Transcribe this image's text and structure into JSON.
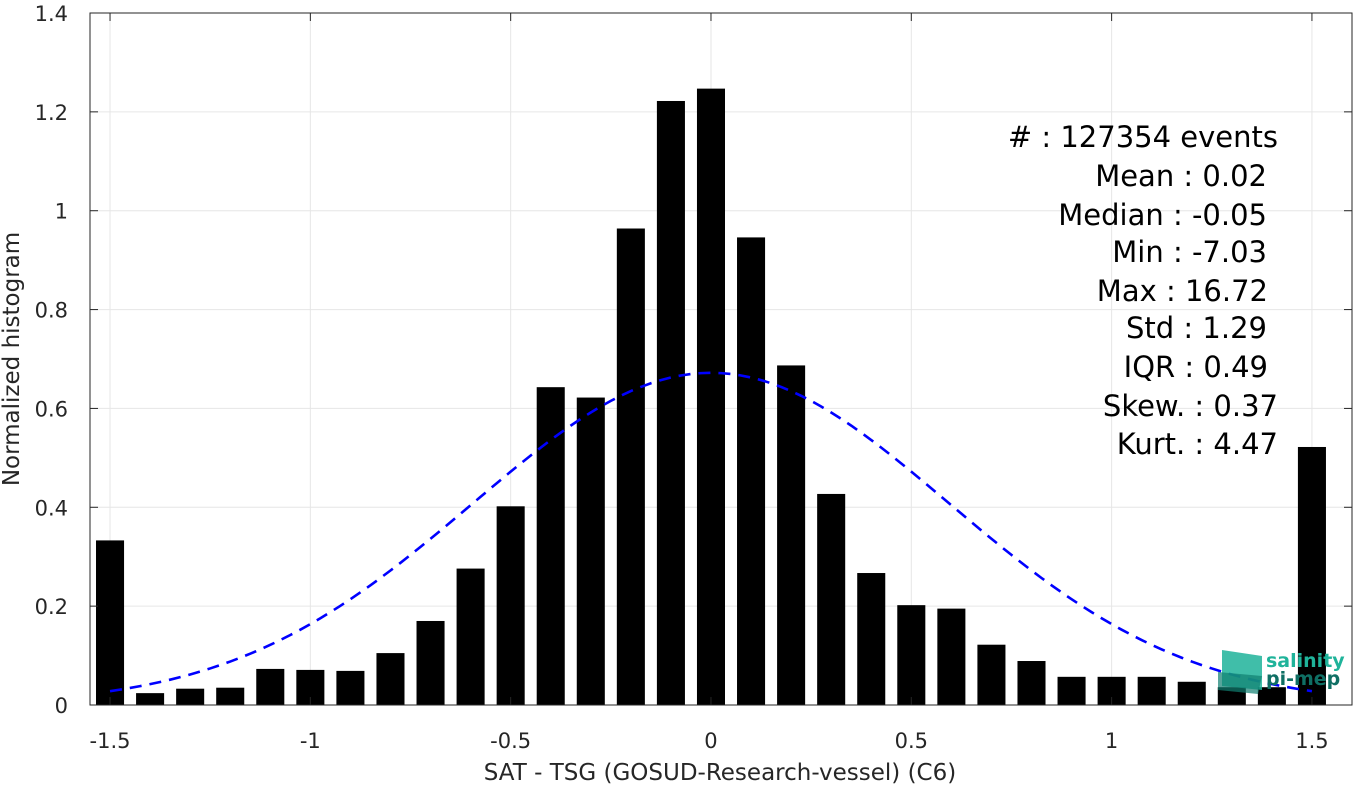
{
  "chart_data": {
    "type": "bar",
    "xlabel": "SAT - TSG (GOSUD-Research-vessel) (C6)",
    "ylabel": "Normalized histogram",
    "xlim": [
      -1.55,
      1.6
    ],
    "ylim": [
      0,
      1.4
    ],
    "grid": true,
    "xticks": [
      -1.5,
      -1,
      -0.5,
      0,
      0.5,
      1,
      1.5
    ],
    "xtick_labels": [
      "-1.5",
      "-1",
      "-0.5",
      "0",
      "0.5",
      "1",
      "1.5"
    ],
    "yticks": [
      0,
      0.2,
      0.4,
      0.6,
      0.8,
      1,
      1.2,
      1.4
    ],
    "ytick_labels": [
      "0",
      "0.2",
      "0.4",
      "0.6",
      "0.8",
      "1",
      "1.2",
      "1.4"
    ],
    "bar_width": 0.07,
    "series": [
      {
        "type": "bar",
        "color": "#000000",
        "x": [
          -1.5,
          -1.4,
          -1.3,
          -1.2,
          -1.1,
          -1.0,
          -0.9,
          -0.8,
          -0.7,
          -0.6,
          -0.5,
          -0.4,
          -0.3,
          -0.2,
          -0.1,
          0.0,
          0.1,
          0.2,
          0.3,
          0.4,
          0.5,
          0.6,
          0.7,
          0.8,
          0.9,
          1.0,
          1.1,
          1.2,
          1.3,
          1.4,
          1.5
        ],
        "values": [
          0.333,
          0.024,
          0.033,
          0.035,
          0.073,
          0.071,
          0.069,
          0.105,
          0.17,
          0.276,
          0.402,
          0.643,
          0.622,
          0.964,
          1.222,
          1.247,
          0.946,
          0.687,
          0.427,
          0.267,
          0.202,
          0.195,
          0.122,
          0.089,
          0.057,
          0.057,
          0.057,
          0.047,
          0.036,
          0.036,
          0.522
        ]
      },
      {
        "type": "line",
        "style": "dashed",
        "color": "#0000ff",
        "mean": -0.0,
        "std": 0.595,
        "x_range": [
          -1.5,
          1.5
        ],
        "peak": 0.672
      }
    ],
    "stats": [
      {
        "label": "#  :",
        "value": "127354 events"
      },
      {
        "label": "Mean :",
        "value": "0.02"
      },
      {
        "label": "Median :",
        "value": "-0.05"
      },
      {
        "label": "Min :",
        "value": "-7.03"
      },
      {
        "label": "Max :",
        "value": "16.72"
      },
      {
        "label": "Std :",
        "value": "1.29"
      },
      {
        "label": "IQR :",
        "value": "0.49"
      },
      {
        "label": "Skew. :",
        "value": "0.37"
      },
      {
        "label": "Kurt. :",
        "value": "4.47"
      }
    ],
    "logo": {
      "line1": "salinity",
      "line2": "pi-mep"
    }
  }
}
